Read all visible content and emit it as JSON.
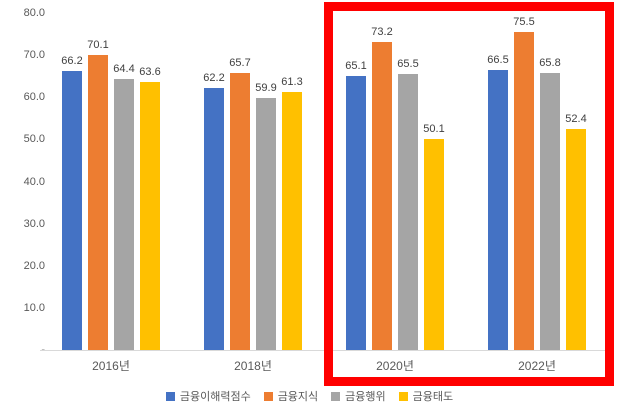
{
  "chart_data": {
    "type": "bar",
    "title": "",
    "xlabel": "",
    "ylabel": "",
    "categories": [
      "2016년",
      "2018년",
      "2020년",
      "2022년"
    ],
    "series": [
      {
        "name": "금융이해력점수",
        "color": "#4472C4",
        "values": [
          66.2,
          62.2,
          65.1,
          66.5
        ]
      },
      {
        "name": "금융지식",
        "color": "#ED7D31",
        "values": [
          70.1,
          65.7,
          73.2,
          75.5
        ]
      },
      {
        "name": "금융행위",
        "color": "#A5A5A5",
        "values": [
          64.4,
          59.9,
          65.5,
          65.8
        ]
      },
      {
        "name": "금융태도",
        "color": "#FFC000",
        "values": [
          63.6,
          61.3,
          50.1,
          52.4
        ]
      }
    ],
    "ylim": [
      0,
      80
    ],
    "yticks": [
      {
        "value": 0,
        "label": "-"
      },
      {
        "value": 10,
        "label": "10.0"
      },
      {
        "value": 20,
        "label": "20.0"
      },
      {
        "value": 30,
        "label": "30.0"
      },
      {
        "value": 40,
        "label": "40.0"
      },
      {
        "value": 50,
        "label": "50.0"
      },
      {
        "value": 60,
        "label": "60.0"
      },
      {
        "value": 70,
        "label": "70.0"
      },
      {
        "value": 80,
        "label": "80.0"
      }
    ],
    "grid": false,
    "data_labels": true,
    "legend_position": "bottom"
  },
  "annotations": {
    "highlight_box": {
      "shape": "rectangle-outline",
      "color": "#FF0000",
      "covers_categories": [
        "2020년",
        "2022년"
      ]
    }
  },
  "style": {
    "background": "#FFFFFF",
    "axis_line_color": "#D9D9D9",
    "axis_text_color": "#595959",
    "data_label_color": "#404040"
  }
}
